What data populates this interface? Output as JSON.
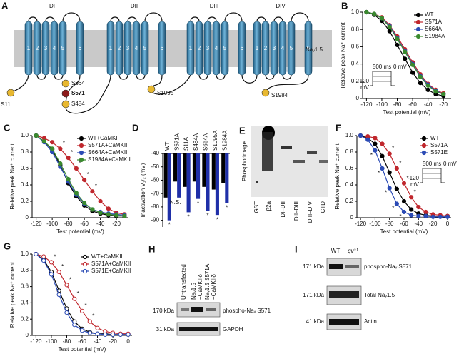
{
  "figure": {
    "A": {
      "label": "A",
      "domains": [
        "DI",
        "DII",
        "DIII",
        "DIV"
      ],
      "segments": [
        "1",
        "2",
        "3",
        "4",
        "5",
        "6"
      ],
      "channel": "Naᵥ1.5",
      "sites": [
        "S11",
        "S571",
        "S664",
        "S484",
        "S1095",
        "S1984"
      ]
    },
    "E": {
      "label": "E",
      "ylabel": "Phosphorimage",
      "lanes": [
        "GST",
        "β2a",
        "DI–DII",
        "DII–DIII",
        "DIII–DIV",
        "CTD"
      ]
    },
    "H": {
      "label": "H",
      "lanes": [
        [
          "Untransfected"
        ],
        [
          "Naᵥ1.5",
          "+CaMKIIδ"
        ],
        [
          "Naᵥ1.5 S571A",
          "+CaMKIIδ"
        ]
      ],
      "markers": [
        "170 kDa",
        "31 kDa"
      ],
      "bands": [
        "phospho-Naᵥ S571",
        "GAPDH"
      ]
    },
    "I": {
      "label": "I",
      "lanes": [
        "WT",
        "qv³ᴶ"
      ],
      "markers": [
        "171 kDa",
        "171 kDa",
        "41 kDa"
      ],
      "bands": [
        "phospho-Naᵥ S571",
        "Total Naᵥ1.5",
        "Actin"
      ]
    }
  },
  "chart_data": [
    {
      "label": "B",
      "type": "line",
      "marker": "filled",
      "xlabel": "Test potential (mV)",
      "ylabel": "Relative peak Na⁺ current",
      "x": [
        -120,
        -110,
        -100,
        -90,
        -80,
        -70,
        -60,
        -50,
        -40,
        -30,
        -20
      ],
      "xlim": [
        -125,
        -10
      ],
      "xticks": [
        -120,
        -100,
        -80,
        -60,
        -40,
        -20
      ],
      "ylim": [
        0,
        1
      ],
      "yticks": [
        0,
        0.2,
        0.4,
        0.6,
        0.8,
        {
          "value": 1,
          "label": "1.0"
        }
      ],
      "legend": "upper right",
      "protocol": {
        "time": "500 ms",
        "level": "0 mV",
        "hold": "-120",
        "unit": "mV"
      },
      "series": [
        {
          "name": "WT",
          "color": "#000000",
          "values": [
            1.0,
            0.97,
            0.9,
            0.78,
            0.62,
            0.46,
            0.3,
            0.18,
            0.1,
            0.05,
            0.03
          ]
        },
        {
          "name": "S571A",
          "color": "#c0272d",
          "values": [
            1.0,
            0.98,
            0.94,
            0.85,
            0.72,
            0.57,
            0.42,
            0.28,
            0.17,
            0.1,
            0.06
          ]
        },
        {
          "name": "S664A",
          "color": "#2b4bb5",
          "values": [
            1.0,
            0.98,
            0.93,
            0.84,
            0.7,
            0.55,
            0.4,
            0.26,
            0.16,
            0.09,
            0.05
          ]
        },
        {
          "name": "S1984A",
          "color": "#3a8a2e",
          "values": [
            1.0,
            0.98,
            0.93,
            0.83,
            0.69,
            0.54,
            0.39,
            0.25,
            0.15,
            0.08,
            0.05
          ]
        }
      ]
    },
    {
      "label": "C",
      "type": "line",
      "marker": "filled",
      "xlabel": "Test potential (mV)",
      "ylabel": "Relative peak Na⁺ current",
      "x": [
        -120,
        -110,
        -100,
        -90,
        -80,
        -70,
        -60,
        -50,
        -40,
        -30,
        -20,
        -10
      ],
      "xlim": [
        -125,
        -5
      ],
      "xticks": [
        -120,
        -100,
        -80,
        -60,
        -40,
        -20
      ],
      "ylim": [
        0,
        1
      ],
      "yticks": [
        0,
        0.2,
        0.4,
        0.6,
        0.8,
        {
          "value": 1,
          "label": "1.0"
        }
      ],
      "legend": "upper right",
      "series": [
        {
          "name": "WT+CaMKII",
          "color": "#000000",
          "values": [
            1.0,
            0.93,
            0.83,
            0.64,
            0.42,
            0.26,
            0.15,
            0.08,
            0.05,
            0.03,
            0.02,
            0.02
          ]
        },
        {
          "name": "S571A+CaMKII",
          "color": "#c0272d",
          "values": [
            1.0,
            0.97,
            0.92,
            0.84,
            0.73,
            0.6,
            0.46,
            0.32,
            0.2,
            0.11,
            0.06,
            0.04
          ],
          "labels": [
            null,
            null,
            null,
            "*",
            "*",
            "*",
            "*",
            "*",
            null,
            null,
            null,
            null
          ]
        },
        {
          "name": "S664A+CaMKII",
          "color": "#2b4bb5",
          "values": [
            1.0,
            0.92,
            0.8,
            0.62,
            0.44,
            0.28,
            0.17,
            0.1,
            0.07,
            0.05,
            0.04,
            0.03
          ]
        },
        {
          "name": "S1984A+CaMKII",
          "color": "#3a8a2e",
          "values": [
            1.0,
            0.93,
            0.84,
            0.66,
            0.47,
            0.3,
            0.18,
            0.1,
            0.06,
            0.04,
            0.03,
            0.02
          ]
        }
      ]
    },
    {
      "label": "D",
      "type": "bar",
      "ylabel": "Inactivation V₁/₂ (mV)",
      "categories": [
        "WT",
        "S571A",
        "S11A",
        "S484A",
        "S664A",
        "S1095A",
        "S1984A"
      ],
      "ylim": [
        -95,
        -40
      ],
      "yticks": [
        -40,
        -50,
        -60,
        -70,
        -80,
        -90
      ],
      "series": [
        {
          "color": "#000000",
          "values": [
            -73,
            -61,
            -65,
            -61,
            -65,
            -67,
            -62
          ]
        },
        {
          "color": "#1f2fa8",
          "values": [
            -90,
            -73,
            -84,
            -74,
            -83,
            -86,
            -77
          ],
          "labels": [
            "*",
            "N.S.",
            "*",
            "*",
            "*",
            "*",
            "*"
          ]
        }
      ]
    },
    {
      "label": "F",
      "type": "line",
      "marker": "filled",
      "xlabel": "Test potential (mV)",
      "ylabel": "Relative peak Na⁺ current",
      "x": [
        -120,
        -110,
        -100,
        -90,
        -80,
        -70,
        -60,
        -50,
        -40,
        -30,
        -20,
        -10,
        0
      ],
      "xlim": [
        -125,
        5
      ],
      "xticks": [
        -120,
        -100,
        -80,
        -60,
        -40,
        -20,
        0
      ],
      "ylim": [
        0,
        1
      ],
      "yticks": [
        0,
        0.2,
        0.4,
        0.6,
        0.8,
        {
          "value": 1,
          "label": "1.0"
        }
      ],
      "legend": "upper right",
      "protocol": {
        "time": "500 ms",
        "level": "0 mV",
        "hold": "-120",
        "unit": "mV"
      },
      "series": [
        {
          "name": "WT",
          "color": "#000000",
          "values": [
            1.0,
            0.97,
            0.9,
            0.75,
            0.55,
            0.35,
            0.2,
            0.1,
            0.05,
            0.03,
            0.02,
            0.02,
            0.02
          ]
        },
        {
          "name": "S571A",
          "color": "#c0272d",
          "values": [
            1.0,
            0.99,
            0.97,
            0.9,
            0.78,
            0.6,
            0.42,
            0.25,
            0.13,
            0.07,
            0.04,
            0.03,
            0.02
          ],
          "labels": [
            null,
            null,
            null,
            null,
            "*",
            "*",
            "*",
            "*",
            null,
            null,
            null,
            null,
            null
          ]
        },
        {
          "name": "S571E",
          "color": "#2b4bb5",
          "values": [
            1.0,
            0.95,
            0.82,
            0.6,
            0.36,
            0.17,
            0.07,
            0.03,
            0.02,
            0.02,
            0.01,
            0.01,
            0.01
          ],
          "labels": [
            null,
            null,
            "*",
            "*",
            "*",
            "*",
            "*",
            null,
            null,
            null,
            null,
            null,
            null
          ]
        }
      ]
    },
    {
      "label": "G",
      "type": "line",
      "marker": "open",
      "xlabel": "Test potential (mV)",
      "ylabel": "Relative peak Na⁺ current",
      "x": [
        -120,
        -110,
        -100,
        -90,
        -80,
        -70,
        -60,
        -50,
        -40,
        -30,
        -20,
        -10,
        0
      ],
      "xlim": [
        -125,
        5
      ],
      "xticks": [
        -120,
        -100,
        -80,
        -60,
        -40,
        -20,
        0
      ],
      "ylim": [
        0,
        1
      ],
      "yticks": [
        0,
        0.2,
        0.4,
        0.6,
        0.8,
        {
          "value": 1,
          "label": "1.0"
        }
      ],
      "legend": "upper right",
      "series": [
        {
          "name": "WT+CaMKII",
          "color": "#000000",
          "values": [
            1.0,
            0.93,
            0.78,
            0.55,
            0.33,
            0.17,
            0.08,
            0.04,
            0.02,
            0.02,
            0.01,
            0.01,
            0.01
          ]
        },
        {
          "name": "S571A+CaMKII",
          "color": "#c0272d",
          "values": [
            1.0,
            0.97,
            0.9,
            0.78,
            0.62,
            0.45,
            0.3,
            0.17,
            0.09,
            0.05,
            0.03,
            0.02,
            0.02
          ],
          "labels": [
            null,
            null,
            "*",
            "*",
            "*",
            "*",
            "*",
            "*",
            null,
            null,
            null,
            null,
            null
          ]
        },
        {
          "name": "S571E+CaMKII",
          "color": "#2b4bb5",
          "values": [
            1.0,
            0.92,
            0.75,
            0.5,
            0.28,
            0.13,
            0.06,
            0.03,
            0.02,
            0.01,
            0.01,
            0.01,
            0.01
          ]
        }
      ]
    }
  ]
}
